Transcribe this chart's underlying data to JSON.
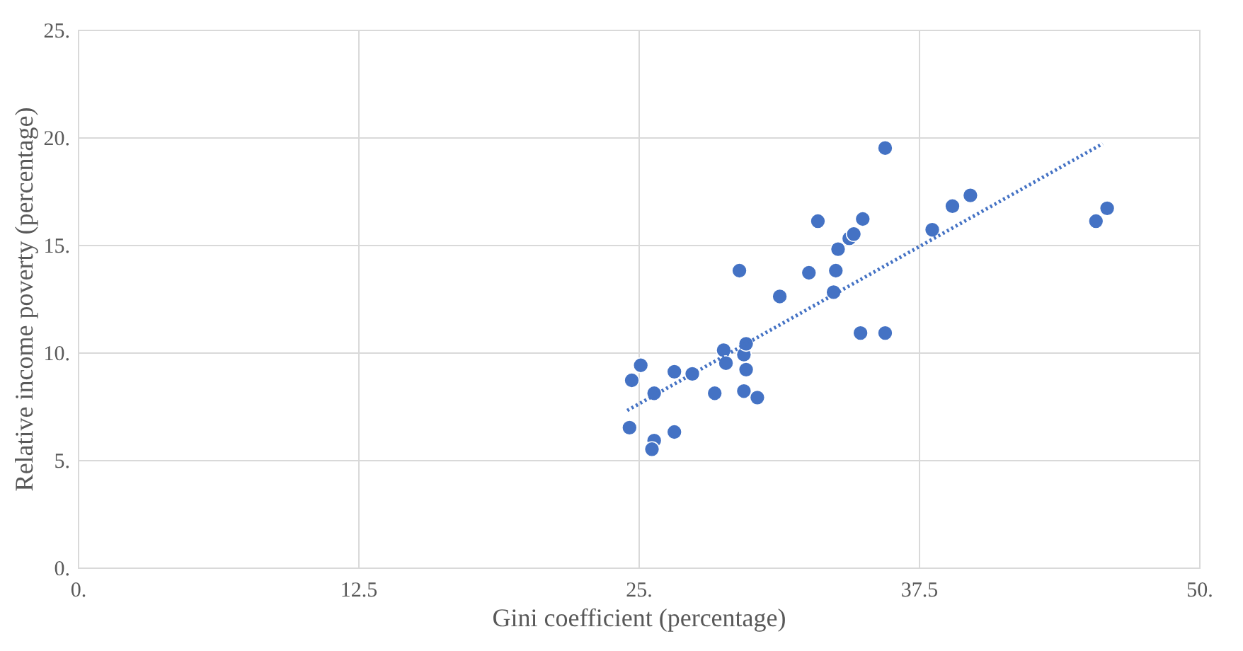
{
  "chart_data": {
    "type": "scatter",
    "xlabel": "Gini coefficient (percentage)",
    "ylabel": "Relative income poverty (percentage)",
    "xlim": [
      0,
      50
    ],
    "ylim": [
      0,
      25
    ],
    "xticks": [
      {
        "value": 0,
        "label": "0."
      },
      12.5,
      {
        "value": 25,
        "label": "25."
      },
      37.5,
      {
        "value": 50,
        "label": "50."
      }
    ],
    "yticks": [
      {
        "value": 0,
        "label": "0."
      },
      {
        "value": 5,
        "label": "5."
      },
      {
        "value": 10,
        "label": "10."
      },
      {
        "value": 15,
        "label": "15."
      },
      {
        "value": 20,
        "label": "20."
      },
      {
        "value": 25,
        "label": "25."
      }
    ],
    "grid": true,
    "marker": "circle",
    "series": [
      {
        "color": "#4472c4",
        "x": [
          24.6,
          24.7,
          25.1,
          25.7,
          25.7,
          25.6,
          26.6,
          26.6,
          27.4,
          28.4,
          28.8,
          28.9,
          29.5,
          29.7,
          29.8,
          29.8,
          29.7,
          30.3,
          31.3,
          32.6,
          33.0,
          33.7,
          33.8,
          33.9,
          34.4,
          34.6,
          35.0,
          34.9,
          36.0,
          36.0,
          38.1,
          39.0,
          39.8,
          45.4,
          45.9
        ],
        "values": [
          6.5,
          8.7,
          9.4,
          8.1,
          5.9,
          5.5,
          9.1,
          6.3,
          9.0,
          8.1,
          10.1,
          9.5,
          13.8,
          9.9,
          10.4,
          9.2,
          8.2,
          7.9,
          12.6,
          13.7,
          16.1,
          12.8,
          13.8,
          14.8,
          15.3,
          15.5,
          16.2,
          10.9,
          10.9,
          19.5,
          15.7,
          16.8,
          17.3,
          16.1,
          16.7
        ]
      },
      {
        "type": "line",
        "color": "#4472c4",
        "line_style": "dotted",
        "marker": "none",
        "x": [
          24.5,
          45.7
        ],
        "values": [
          7.3,
          19.7
        ]
      }
    ]
  }
}
